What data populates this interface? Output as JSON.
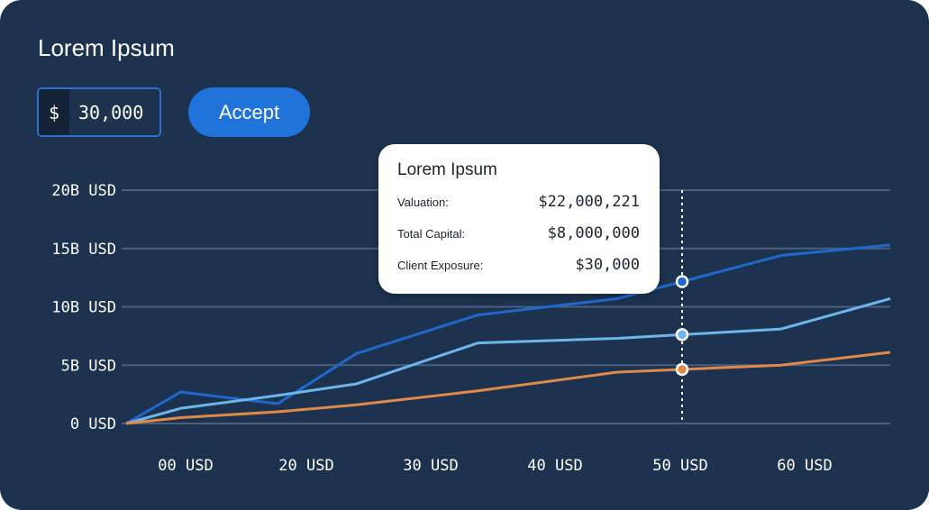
{
  "header": {
    "title": "Lorem Ipsum"
  },
  "amount_input": {
    "currency": "$",
    "value": "30,000"
  },
  "accept_button": {
    "label": "Accept"
  },
  "tooltip": {
    "title": "Lorem Ipsum",
    "rows": [
      {
        "label": "Valuation:",
        "value": "$22,000,221"
      },
      {
        "label": "Total Capital:",
        "value": "$8,000,000"
      },
      {
        "label": "Client Exposure:",
        "value": "$30,000"
      }
    ]
  },
  "colors": {
    "background": "#1d324e",
    "accent": "#2073d8",
    "series_dark": "#2168cc",
    "series_light": "#6db6eb",
    "series_orange": "#e08a4a",
    "grid": "#4a5f7c"
  },
  "chart_data": {
    "type": "line",
    "x": [
      0,
      20,
      30,
      40,
      50,
      60
    ],
    "x_tick_labels": [
      "00 USD",
      "20 USD",
      "30 USD",
      "40 USD",
      "50 USD",
      "60 USD"
    ],
    "y_tick_labels": [
      "0 USD",
      "5B USD",
      "10B USD",
      "15B USD",
      "20B USD"
    ],
    "y_ticks": [
      0,
      5,
      10,
      15,
      20
    ],
    "ylim": [
      0,
      20
    ],
    "grid": true,
    "highlight_x": 50,
    "series": [
      {
        "color": "series_dark",
        "points": [
          [
            -2,
            0
          ],
          [
            2.5,
            2.7
          ],
          [
            10.5,
            1.7
          ],
          [
            17,
            6
          ],
          [
            27,
            9.3
          ],
          [
            38.5,
            10.7
          ],
          [
            52,
            14.4
          ],
          [
            61,
            15.3
          ]
        ]
      },
      {
        "color": "series_light",
        "points": [
          [
            -2,
            0
          ],
          [
            2.5,
            1.3
          ],
          [
            10.5,
            2.4
          ],
          [
            17,
            3.4
          ],
          [
            27,
            6.9
          ],
          [
            38.5,
            7.3
          ],
          [
            52,
            8.1
          ],
          [
            61,
            10.7
          ]
        ]
      },
      {
        "color": "series_orange",
        "points": [
          [
            -2,
            0
          ],
          [
            2.5,
            0.5
          ],
          [
            10.5,
            1.0
          ],
          [
            17,
            1.6
          ],
          [
            27,
            2.8
          ],
          [
            38.5,
            4.4
          ],
          [
            52,
            5.0
          ],
          [
            61,
            6.1
          ]
        ]
      }
    ]
  }
}
